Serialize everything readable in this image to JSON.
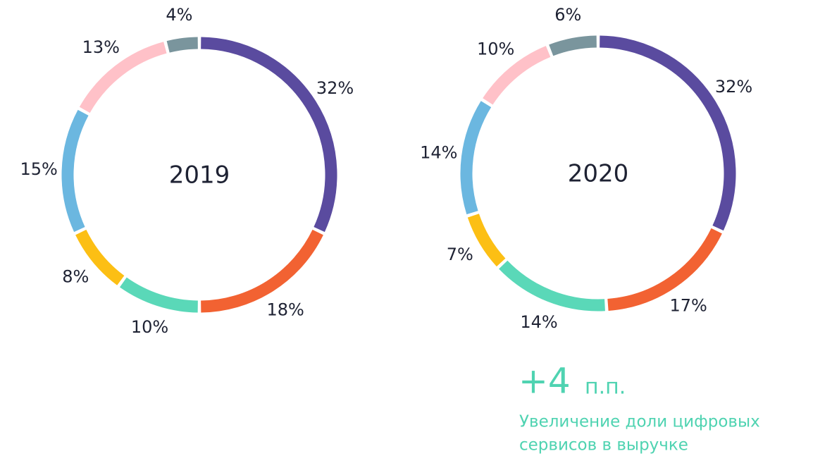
{
  "chart_data": [
    {
      "type": "donut",
      "title": "2019",
      "values": [
        32,
        18,
        10,
        8,
        15,
        13,
        4
      ],
      "value_labels": [
        "32%",
        "18%",
        "10%",
        "8%",
        "15%",
        "13%",
        "4%"
      ],
      "colors": [
        "#5a4b9f",
        "#f26232",
        "#5ad8b8",
        "#fcbf14",
        "#6bb7e0",
        "#ffc1c8",
        "#7a959d"
      ]
    },
    {
      "type": "donut",
      "title": "2020",
      "values": [
        32,
        17,
        14,
        7,
        14,
        10,
        6
      ],
      "value_labels": [
        "32%",
        "17%",
        "14%",
        "7%",
        "14%",
        "10%",
        "6%"
      ],
      "colors": [
        "#5a4b9f",
        "#f26232",
        "#5ad8b8",
        "#fcbf14",
        "#6bb7e0",
        "#ffc1c8",
        "#7a959d"
      ]
    }
  ],
  "highlight": "+4",
  "highlight_unit": "п.п.",
  "note_lines": [
    "Увеличение доли цифровых",
    "сервисов в выручке"
  ]
}
